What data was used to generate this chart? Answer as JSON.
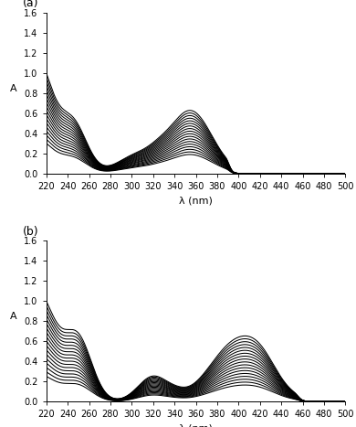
{
  "panel_a": {
    "label": "(a)",
    "n_curves": 18,
    "xlim": [
      220,
      500
    ],
    "ylim": [
      0,
      1.6
    ],
    "yticks": [
      0,
      0.2,
      0.4,
      0.6,
      0.8,
      1.0,
      1.2,
      1.4,
      1.6
    ],
    "xticks": [
      220,
      240,
      260,
      280,
      300,
      320,
      340,
      360,
      380,
      400,
      420,
      440,
      460,
      480,
      500
    ],
    "xlabel": "λ (nm)",
    "ylabel": "A",
    "scale_min": 0.3,
    "scale_max": 1.0
  },
  "panel_b": {
    "label": "(b)",
    "n_curves": 18,
    "xlim": [
      220,
      500
    ],
    "ylim": [
      0,
      1.6
    ],
    "yticks": [
      0,
      0.2,
      0.4,
      0.6,
      0.8,
      1.0,
      1.2,
      1.4,
      1.6
    ],
    "xticks": [
      220,
      240,
      260,
      280,
      300,
      320,
      340,
      360,
      380,
      400,
      420,
      440,
      460,
      480,
      500
    ],
    "xlabel": "λ (nm)",
    "ylabel": "A",
    "scale_min": 0.25,
    "scale_max": 1.0
  },
  "line_color": "#000000",
  "line_width": 0.75,
  "background_color": "#ffffff",
  "tick_fontsize": 7,
  "label_fontsize": 8
}
